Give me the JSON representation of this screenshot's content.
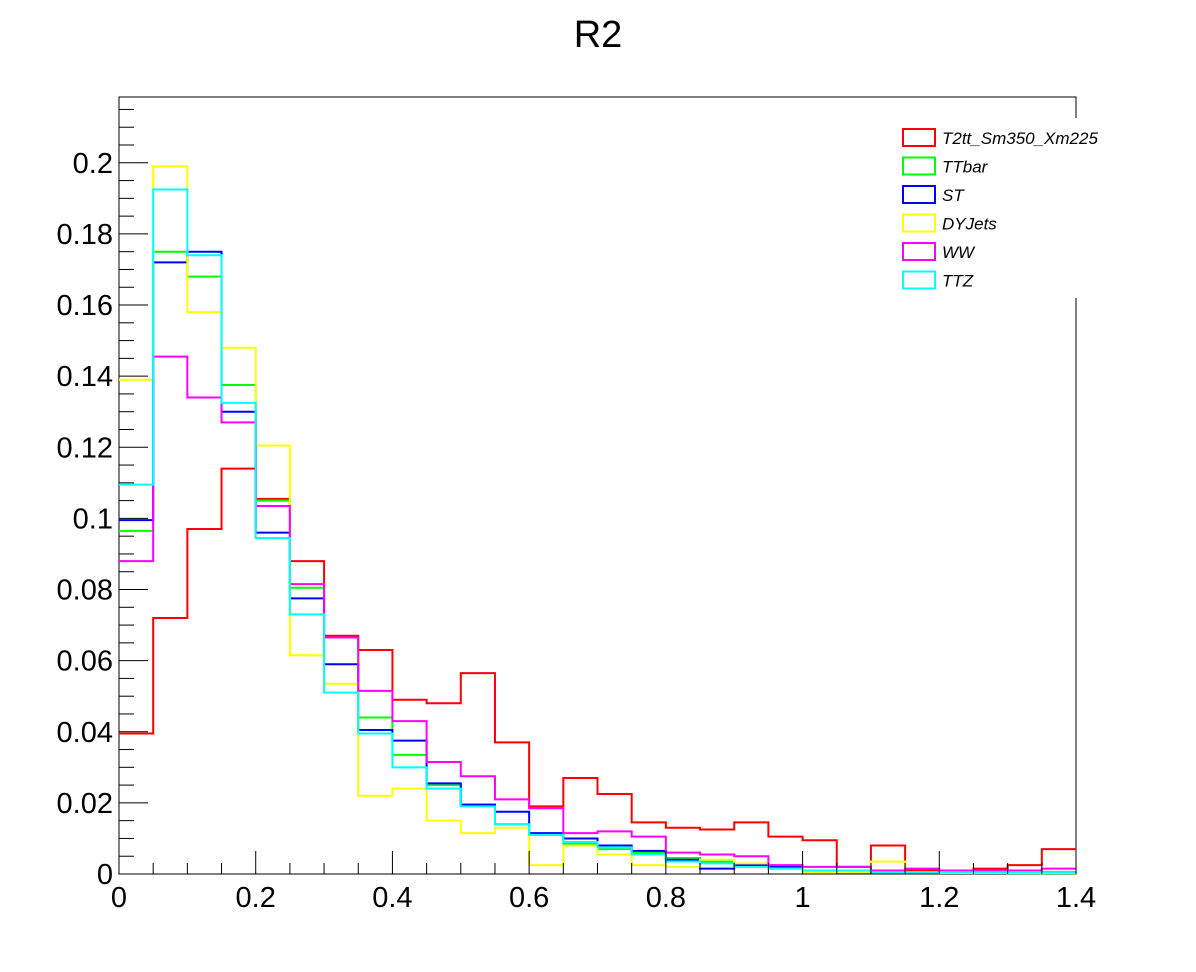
{
  "chart_data": {
    "type": "histogram-step",
    "title": "R2",
    "xlim": [
      0,
      1.4
    ],
    "ylim": [
      0,
      0.2185
    ],
    "bin_width": 0.05,
    "x_ticks": [
      "0",
      "0.2",
      "0.4",
      "0.6",
      "0.8",
      "1",
      "1.2",
      "1.4"
    ],
    "y_ticks": [
      "0",
      "0.02",
      "0.04",
      "0.06",
      "0.08",
      "0.1",
      "0.12",
      "0.14",
      "0.16",
      "0.18",
      "0.2"
    ],
    "grid": false,
    "legend_position": "top-right",
    "series": [
      {
        "name": "T2tt_Sm350_Xm225",
        "color": "#ff0000",
        "values": [
          0.0395,
          0.072,
          0.097,
          0.114,
          0.1055,
          0.088,
          0.067,
          0.063,
          0.049,
          0.048,
          0.0565,
          0.037,
          0.019,
          0.027,
          0.0225,
          0.0145,
          0.013,
          0.0125,
          0.0145,
          0.0105,
          0.0095,
          0.002,
          0.008,
          0.001,
          0.001,
          0.0015,
          0.0025,
          0.007
        ]
      },
      {
        "name": "TTbar",
        "color": "#00ff00",
        "values": [
          0.0965,
          0.175,
          0.168,
          0.1375,
          0.105,
          0.0805,
          0.0665,
          0.044,
          0.0335,
          0.025,
          0.0195,
          0.014,
          0.011,
          0.0085,
          0.007,
          0.006,
          0.0045,
          0.0035,
          0.0025,
          0.0015,
          0.001,
          0.0008,
          0.0005,
          0.0004,
          0.0003,
          0.0003,
          0.0002,
          0.0002
        ]
      },
      {
        "name": "ST",
        "color": "#0000ff",
        "values": [
          0.0995,
          0.172,
          0.175,
          0.13,
          0.096,
          0.0775,
          0.059,
          0.0405,
          0.0375,
          0.0255,
          0.0195,
          0.0175,
          0.0115,
          0.01,
          0.008,
          0.0065,
          0.004,
          0.0015,
          0.0025,
          0.002,
          0.001,
          0.0005,
          0.001,
          0.0005,
          0.0005,
          0.0005,
          0.0005,
          0.0005
        ]
      },
      {
        "name": "DYJets",
        "color": "#ffff00",
        "values": [
          0.139,
          0.199,
          0.158,
          0.148,
          0.1205,
          0.0615,
          0.0535,
          0.022,
          0.024,
          0.015,
          0.0115,
          0.013,
          0.0025,
          0.008,
          0.0055,
          0.0025,
          0.002,
          0.004,
          0.003,
          0.0015,
          0.0005,
          0.0005,
          0.0035,
          0.0005,
          0.0003,
          0.0003,
          0.0003,
          0.0003
        ]
      },
      {
        "name": "WW",
        "color": "#ff00ff",
        "values": [
          0.088,
          0.1455,
          0.134,
          0.127,
          0.1035,
          0.0815,
          0.0665,
          0.0515,
          0.043,
          0.0315,
          0.0275,
          0.021,
          0.0185,
          0.0115,
          0.012,
          0.0105,
          0.006,
          0.0055,
          0.005,
          0.0025,
          0.002,
          0.002,
          0.001,
          0.0015,
          0.001,
          0.001,
          0.001,
          0.0015
        ]
      },
      {
        "name": "TTZ",
        "color": "#00ffff",
        "values": [
          0.1095,
          0.1925,
          0.174,
          0.1325,
          0.0945,
          0.073,
          0.051,
          0.0395,
          0.03,
          0.024,
          0.019,
          0.014,
          0.011,
          0.009,
          0.0075,
          0.0055,
          0.0035,
          0.003,
          0.002,
          0.0015,
          0.001,
          0.001,
          0.0005,
          0.0005,
          0.0005,
          0.0005,
          0.0005,
          0.0005
        ]
      }
    ]
  }
}
